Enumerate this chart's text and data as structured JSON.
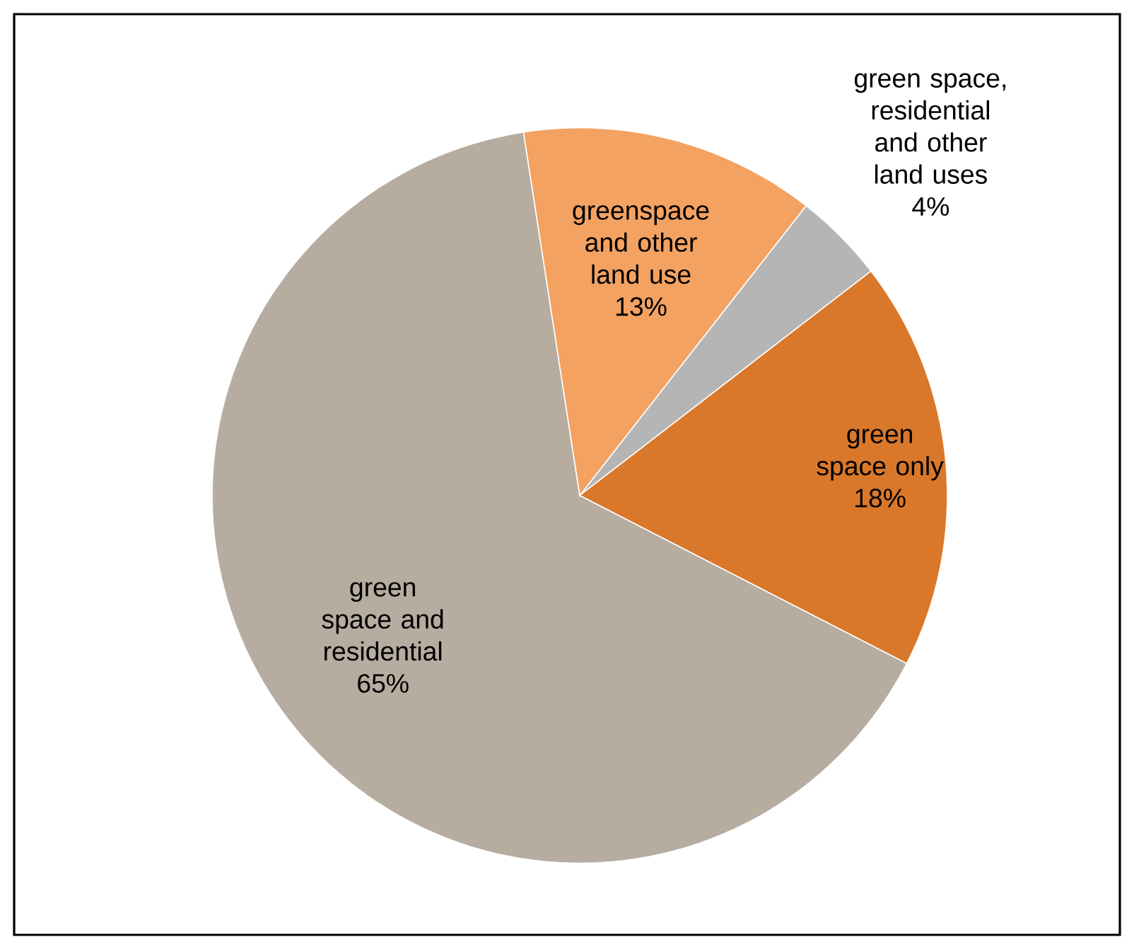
{
  "chart_data": {
    "type": "pie",
    "categories": [
      "green space, residential and other land uses",
      "green space only",
      "green space and residential",
      "greenspace and other land use"
    ],
    "values": [
      4,
      18,
      65,
      13
    ],
    "colors": [
      "#b5b5b5",
      "#d9782b",
      "#b7aca0",
      "#f3a262"
    ],
    "value_labels": [
      "4%",
      "18%",
      "65%",
      "13%"
    ]
  }
}
